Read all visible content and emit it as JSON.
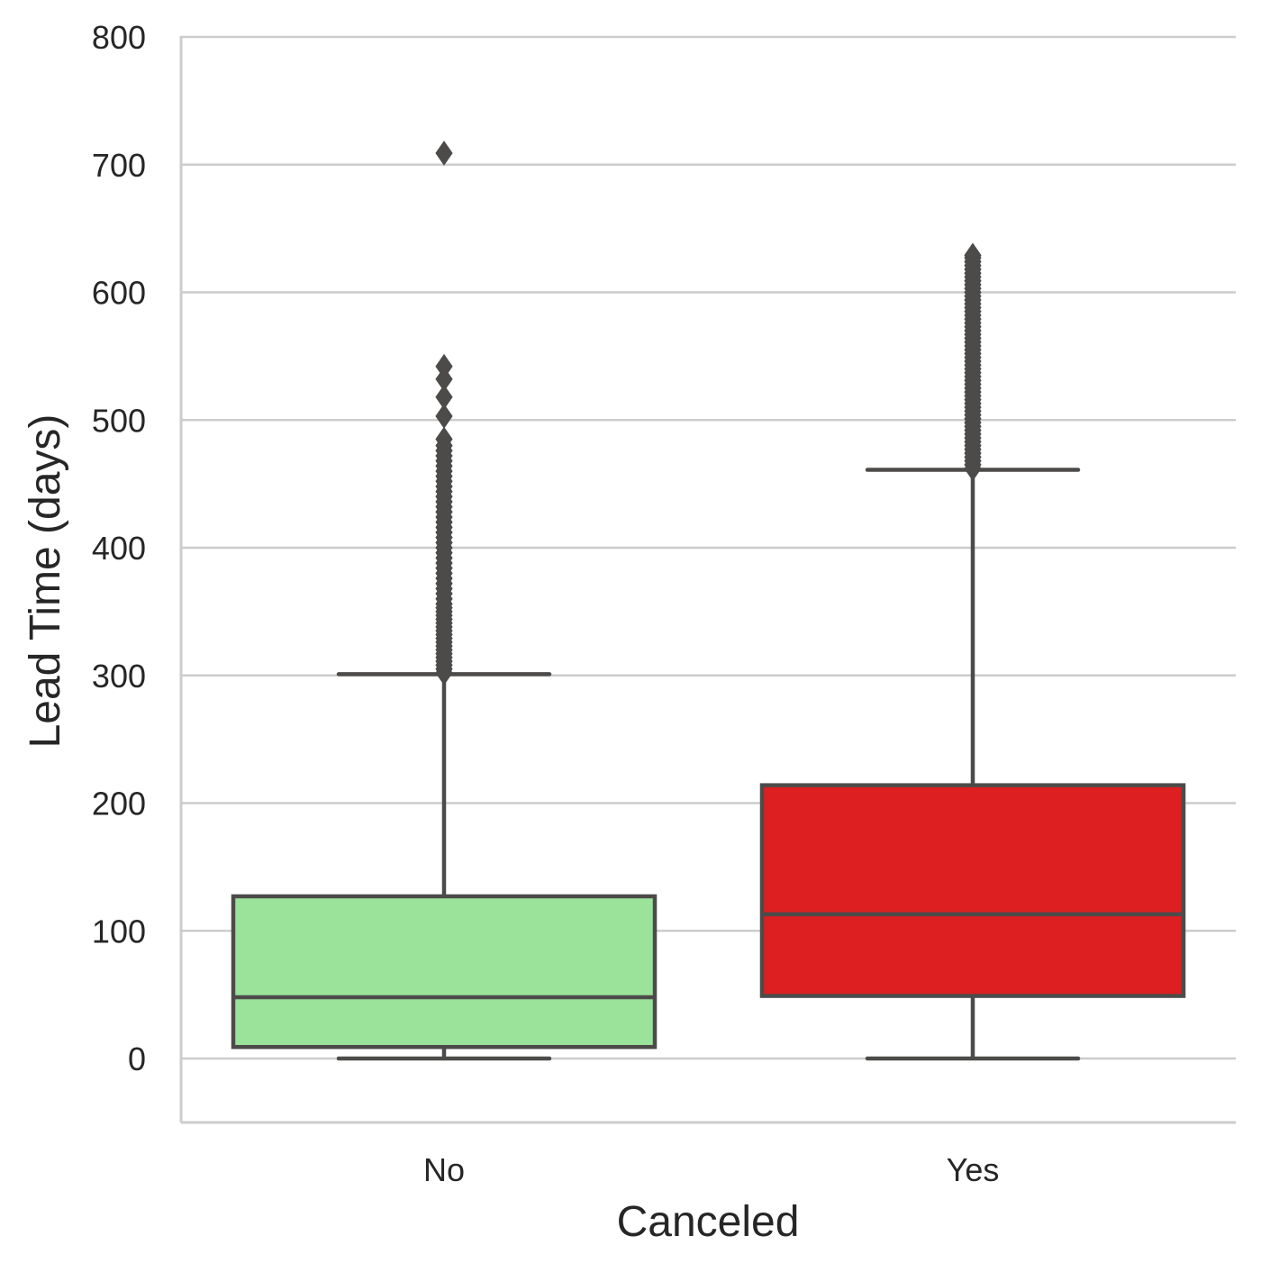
{
  "chart_data": {
    "type": "box",
    "title": "",
    "xlabel": "Canceled",
    "ylabel": "Lead Time (days)",
    "categories": [
      "No",
      "Yes"
    ],
    "ylim": [
      -50,
      800
    ],
    "yticks": [
      "0",
      "100",
      "200",
      "300",
      "400",
      "500",
      "600",
      "700",
      "800"
    ],
    "ytick_values": [
      0,
      100,
      200,
      300,
      400,
      500,
      600,
      700,
      800
    ],
    "grid": "horizontal",
    "colors": {
      "box_fill": [
        "#9be29b",
        "#dd1f21"
      ],
      "line": "#4d4b4a",
      "grid": "#cccccc",
      "background": "#ffffff"
    },
    "series": [
      {
        "category": "No",
        "whisker_low": 0,
        "q1": 9,
        "median": 48,
        "q3": 127,
        "whisker_high": 301,
        "outliers": [
          302,
          305,
          308,
          311,
          314,
          317,
          320,
          323,
          326,
          329,
          332,
          335,
          338,
          341,
          344,
          347,
          350,
          353,
          356,
          360,
          364,
          368,
          372,
          376,
          380,
          384,
          388,
          392,
          396,
          400,
          404,
          408,
          412,
          416,
          420,
          424,
          428,
          432,
          436,
          440,
          444,
          448,
          452,
          456,
          460,
          464,
          468,
          472,
          476,
          480,
          485,
          503,
          518,
          532,
          542,
          709
        ]
      },
      {
        "category": "Yes",
        "whisker_low": 0,
        "q1": 49,
        "median": 113,
        "q3": 214,
        "whisker_high": 461,
        "outliers": [
          462,
          465,
          468,
          471,
          474,
          477,
          480,
          483,
          486,
          489,
          492,
          495,
          498,
          501,
          504,
          507,
          510,
          513,
          516,
          519,
          522,
          525,
          528,
          531,
          534,
          537,
          540,
          543,
          546,
          549,
          552,
          555,
          558,
          561,
          564,
          567,
          570,
          573,
          576,
          579,
          582,
          585,
          588,
          591,
          594,
          597,
          600,
          603,
          606,
          609,
          612,
          615,
          618,
          621,
          624,
          627,
          629
        ]
      }
    ]
  }
}
